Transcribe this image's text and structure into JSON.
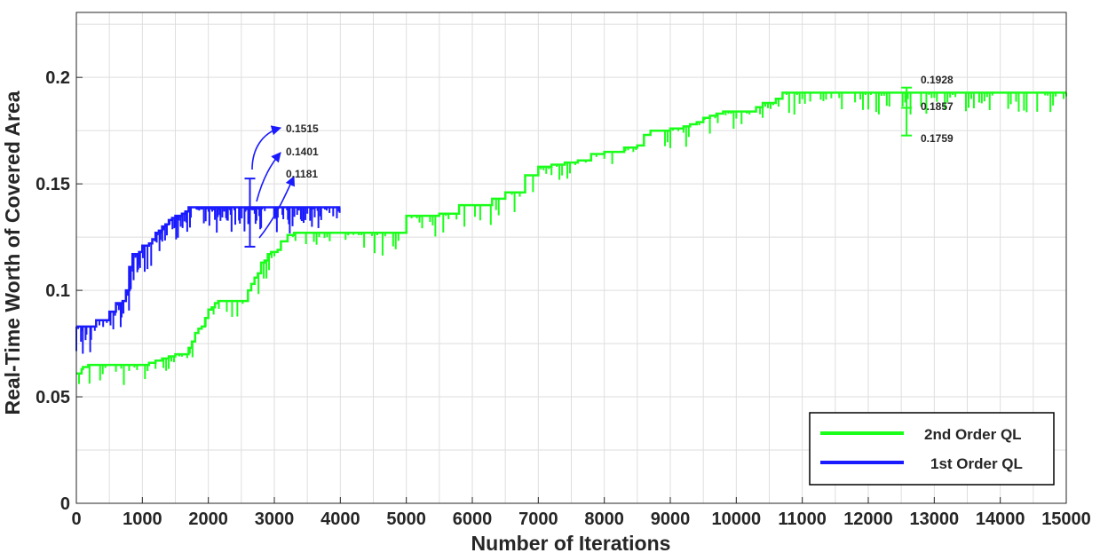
{
  "chart_data": {
    "type": "line",
    "title": "",
    "xlabel": "Number of Iterations",
    "ylabel": "Real-Time Worth of Covered Area",
    "xlim": [
      0,
      15000
    ],
    "ylim": [
      0,
      0.2
    ],
    "y_axis_top": 0.2305,
    "xticks": [
      0,
      1000,
      2000,
      3000,
      4000,
      5000,
      6000,
      7000,
      8000,
      9000,
      10000,
      11000,
      12000,
      13000,
      14000,
      15000
    ],
    "xtick_labels": [
      "0",
      "1000",
      "2000",
      "3000",
      "4000",
      "5000",
      "6000",
      "7000",
      "8000",
      "9000",
      "10000",
      "11000",
      "12000",
      "13000",
      "14000",
      "15000"
    ],
    "yticks": [
      0,
      0.05,
      0.1,
      0.15,
      0.2
    ],
    "ytick_labels": [
      "0",
      "0.05",
      "0.1",
      "0.15",
      "0.2"
    ],
    "grid": true,
    "legend_position": "bottom-right",
    "series": [
      {
        "name": "2nd Order QL",
        "color": "#1aff1a",
        "x": [
          0,
          80,
          100,
          180,
          250,
          400,
          600,
          800,
          1000,
          1100,
          1200,
          1300,
          1400,
          1500,
          1600,
          1700,
          1750,
          1800,
          1850,
          1900,
          1950,
          2000,
          2050,
          2100,
          2150,
          2200,
          2400,
          2600,
          2650,
          2700,
          2750,
          2800,
          2850,
          2900,
          2950,
          3000,
          3050,
          3100,
          3200,
          3300,
          3400,
          3500,
          3600,
          3700,
          3800,
          3900,
          4000,
          4500,
          5000,
          5500,
          5800,
          6000,
          6300,
          6500,
          6800,
          7000,
          7200,
          7400,
          7600,
          7800,
          8000,
          8300,
          8500,
          8600,
          8700,
          8800,
          8900,
          9000,
          9200,
          9300,
          9400,
          9500,
          9600,
          9700,
          9800,
          10000,
          10300,
          10400,
          10500,
          10600,
          10700,
          11000,
          12000,
          13000,
          14000,
          15000
        ],
        "values": [
          0.061,
          0.063,
          0.064,
          0.065,
          0.065,
          0.065,
          0.065,
          0.065,
          0.065,
          0.066,
          0.067,
          0.068,
          0.069,
          0.07,
          0.07,
          0.073,
          0.076,
          0.08,
          0.082,
          0.083,
          0.087,
          0.091,
          0.092,
          0.094,
          0.095,
          0.095,
          0.095,
          0.1,
          0.103,
          0.106,
          0.108,
          0.113,
          0.114,
          0.117,
          0.118,
          0.118,
          0.119,
          0.123,
          0.126,
          0.127,
          0.127,
          0.127,
          0.127,
          0.127,
          0.127,
          0.127,
          0.127,
          0.127,
          0.135,
          0.136,
          0.14,
          0.14,
          0.143,
          0.146,
          0.154,
          0.158,
          0.159,
          0.16,
          0.161,
          0.164,
          0.165,
          0.167,
          0.168,
          0.173,
          0.175,
          0.175,
          0.175,
          0.176,
          0.177,
          0.178,
          0.179,
          0.181,
          0.182,
          0.183,
          0.184,
          0.184,
          0.186,
          0.188,
          0.188,
          0.19,
          0.1928,
          0.1928,
          0.1928,
          0.1928,
          0.1928,
          0.1928
        ]
      },
      {
        "name": "1st Order QL",
        "color": "#1a1aff",
        "x": [
          0,
          200,
          300,
          400,
          500,
          600,
          700,
          750,
          800,
          850,
          900,
          950,
          1000,
          1050,
          1100,
          1150,
          1200,
          1250,
          1300,
          1350,
          1400,
          1450,
          1500,
          1550,
          1600,
          1650,
          1700,
          1800,
          2000,
          2500,
          3000,
          3500,
          4000
        ],
        "values": [
          0.083,
          0.083,
          0.086,
          0.086,
          0.09,
          0.094,
          0.095,
          0.1,
          0.111,
          0.117,
          0.117,
          0.118,
          0.121,
          0.121,
          0.122,
          0.124,
          0.127,
          0.128,
          0.13,
          0.131,
          0.133,
          0.134,
          0.135,
          0.135,
          0.136,
          0.137,
          0.139,
          0.139,
          0.139,
          0.139,
          0.139,
          0.139,
          0.139
        ]
      }
    ],
    "annotations": [
      {
        "label": "0.1515",
        "series": "1st Order QL"
      },
      {
        "label": "0.1401",
        "series": "1st Order QL"
      },
      {
        "label": "0.1181",
        "series": "1st Order QL"
      },
      {
        "label": "0.1928",
        "series": "2nd Order QL"
      },
      {
        "label": "0.1857",
        "series": "2nd Order QL"
      },
      {
        "label": "0.1759",
        "series": "2nd Order QL"
      }
    ],
    "errorbars": [
      {
        "series": "1st Order QL",
        "x": 2630,
        "low": 0.1205,
        "mid": 0.1381,
        "high": 0.1525
      },
      {
        "series": "2nd Order QL",
        "x": 12580,
        "low": 0.1727,
        "mid": 0.1857,
        "high": 0.1952
      }
    ]
  }
}
